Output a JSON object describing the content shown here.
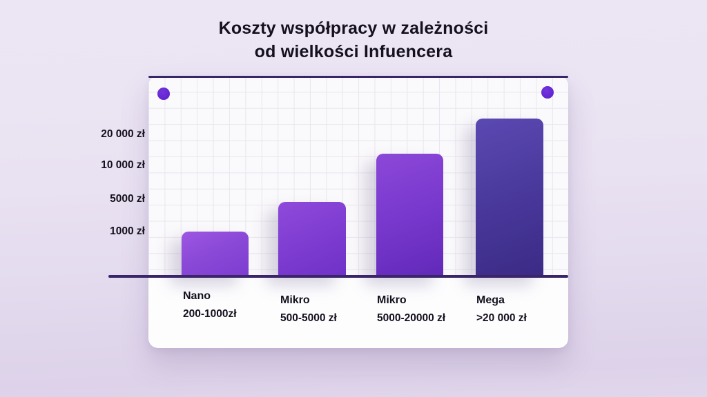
{
  "title": {
    "line1": "Koszty współpracy w zależności",
    "line2": "od wielkości Infuencera"
  },
  "chart_data": {
    "type": "bar",
    "title": "Koszty współpracy w zależności od wielkości Infuencera",
    "categories": [
      "Nano",
      "Mikro",
      "Mikro",
      "Mega"
    ],
    "x_categories": [
      {
        "name": "Nano",
        "range": "200-1000zł",
        "value_zl_approx": 1000
      },
      {
        "name": "Mikro",
        "range": "500-5000 zł",
        "value_zl_approx": 4800
      },
      {
        "name": "Mikro",
        "range": "5000-20000 zł",
        "value_zl_approx": 13000
      },
      {
        "name": "Mega",
        "range": ">20 000 zł",
        "value_zl_approx": 25000
      }
    ],
    "values": [
      1000,
      4800,
      13000,
      25000
    ],
    "y_ticks": [
      "20 000 zł",
      "10 000 zł",
      "5000 zł",
      "1000 zł"
    ],
    "xlabel": "",
    "ylabel": "",
    "axis_scale": "nonlinear",
    "grid": true,
    "legend_position": "none",
    "colors": {
      "bar_nano": "#8b49d7",
      "bar_mikro_small": "#7d3bd0",
      "bar_mikro_large": "#7838cd",
      "bar_mega": "#44339a",
      "axis_line": "#3a2569",
      "accent_dot": "#6426d3",
      "card_background": "#fdfdfe",
      "page_background": "#e7dff1",
      "text": "#15101e"
    }
  }
}
